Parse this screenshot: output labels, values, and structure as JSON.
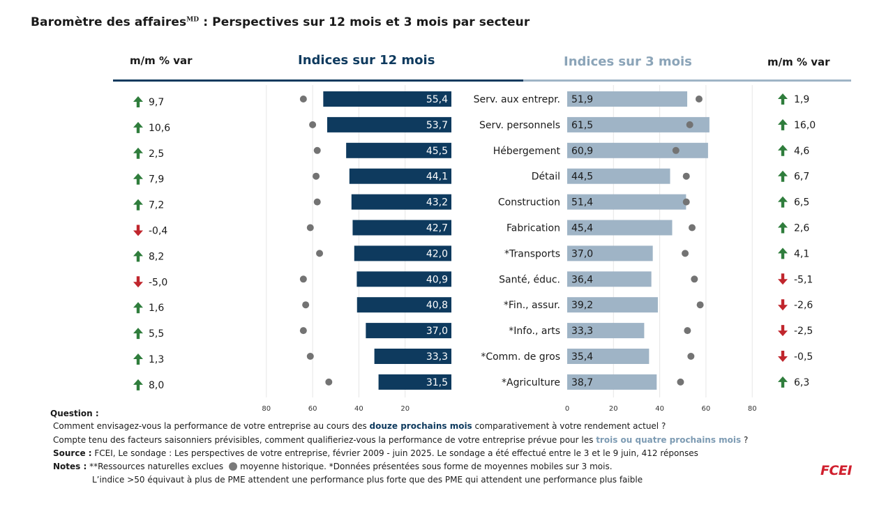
{
  "title": "Baromètre des affaires",
  "title_sup": "MD",
  "title_rest": " : Perspectives sur 12 mois et 3 mois par secteur",
  "headers": {
    "left_var": "m/m % var",
    "twelve": "Indices sur 12 mois",
    "three": "Indices sur 3 mois",
    "right_var": "m/m % var"
  },
  "colors": {
    "dark_bar": "#0e3a5e",
    "light_bar": "#9fb4c6",
    "dot": "#737373",
    "up": "#2f7d3c",
    "down": "#c0262d"
  },
  "chart_data": {
    "type": "bar",
    "categories": [
      "Serv. aux entrepr.",
      "Serv. personnels",
      "Hébergement",
      "Détail",
      "Construction",
      "Fabrication",
      "*Transports",
      "Santé, éduc.",
      "*Fin., assur.",
      "*Info., arts",
      "*Comm. de gros",
      "*Agriculture"
    ],
    "series": [
      {
        "name": "Indices sur 12 mois",
        "values": [
          55.4,
          53.7,
          45.5,
          44.1,
          43.2,
          42.7,
          42.0,
          40.9,
          40.8,
          37.0,
          33.3,
          31.5
        ]
      },
      {
        "name": "Moyenne historique 12 mois",
        "values": [
          64,
          60,
          58,
          58.5,
          58,
          61,
          57,
          64,
          63,
          64,
          61,
          53
        ]
      },
      {
        "name": "Indices sur 3 mois",
        "values": [
          51.9,
          61.5,
          60.9,
          44.5,
          51.4,
          45.4,
          37.0,
          36.4,
          39.2,
          33.3,
          35.4,
          38.7
        ]
      },
      {
        "name": "Moyenne historique 3 mois",
        "values": [
          57,
          53,
          47,
          51.5,
          51.5,
          54,
          51,
          55,
          57.5,
          52,
          53.5,
          49
        ]
      }
    ],
    "var_12": [
      9.7,
      10.6,
      2.5,
      7.9,
      7.2,
      -0.4,
      8.2,
      -5.0,
      1.6,
      5.5,
      1.3,
      8.0
    ],
    "var_3": [
      1.9,
      16.0,
      4.6,
      6.7,
      6.5,
      2.6,
      4.1,
      -5.1,
      -2.6,
      -2.5,
      -0.5,
      6.3
    ],
    "labels_12": [
      "55,4",
      "53,7",
      "45,5",
      "44,1",
      "43,2",
      "42,7",
      "42,0",
      "40,9",
      "40,8",
      "37,0",
      "33,3",
      "31,5"
    ],
    "labels_3": [
      "51,9",
      "61,5",
      "60,9",
      "44,5",
      "51,4",
      "45,4",
      "37,0",
      "36,4",
      "39,2",
      "33,3",
      "35,4",
      "38,7"
    ],
    "var_12_labels": [
      "9,7",
      "10,6",
      "2,5",
      "7,9",
      "7,2",
      "-0,4",
      "8,2",
      "-5,0",
      "1,6",
      "5,5",
      "1,3",
      "8,0"
    ],
    "var_3_labels": [
      "1,9",
      "16,0",
      "4,6",
      "6,7",
      "6,5",
      "2,6",
      "4,1",
      "-5,1",
      "-2,6",
      "-2,5",
      "-0,5",
      "6,3"
    ],
    "axis_12": {
      "ticks": [
        80,
        60,
        40,
        20
      ],
      "range": [
        0,
        80
      ],
      "reversed": true
    },
    "axis_3": {
      "ticks": [
        0,
        20,
        40,
        60,
        80
      ],
      "range": [
        0,
        80
      ]
    }
  },
  "footer": {
    "question_label": "Question :",
    "q1_a": "Comment envisagez-vous la performance de votre entreprise au cours des ",
    "q1_hl": "douze prochains mois",
    "q1_b": " comparativement à votre rendement actuel ?",
    "q2_a": "Compte tenu des facteurs saisonniers prévisibles, comment qualifieriez-vous la performance  de votre entreprise prévue pour les ",
    "q2_hl": "trois ou quatre prochains mois",
    "q2_b": " ?",
    "source_label": "Source :",
    "source_text": " FCEI, Le sondage : Les perspectives de votre entreprise, février 2009 - juin 2025. Le sondage a été effectué entre le 3 et le 9 juin, 412 réponses",
    "notes_label": "Notes :",
    "notes_a": " **Ressources naturelles exclues",
    "notes_b": "moyenne historique. *Données présentées sous forme de moyennes mobiles sur 3 mois.",
    "notes_line2": "L’indice >50 équivaut à plus de PME attendent une performance plus forte que des PME qui attendent une performance plus faible",
    "logo": "FCEI"
  }
}
